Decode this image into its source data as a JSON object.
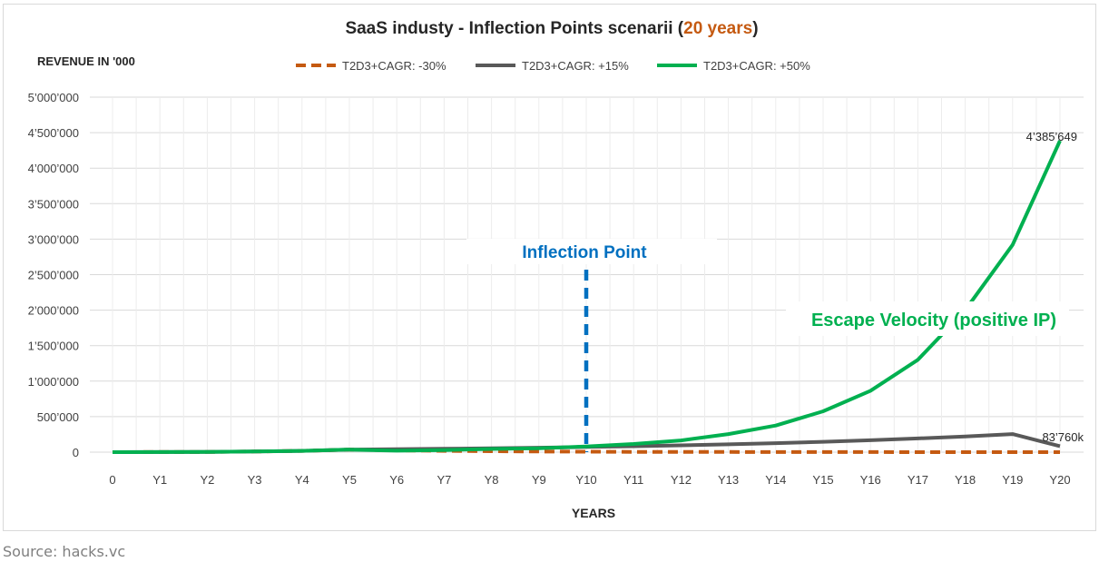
{
  "source_text": "Source: hacks.vc",
  "annotations": {
    "inflection_label": "Inflection Point",
    "escape_label": "Escape Velocity (positive IP)",
    "end_label_high": "4’385’649",
    "end_label_mid": "83’760k"
  },
  "colors": {
    "series_low": "#c55a11",
    "series_mid": "#595959",
    "series_high": "#00b050",
    "inflection": "#0070c0",
    "title_highlight": "#c55a11"
  },
  "chart_data": {
    "type": "line",
    "title": "SaaS industy - Inflection Points scenarii (",
    "title_highlight": "20 years",
    "title_end": ")",
    "ylabel": "REVENUE IN '000",
    "xlabel": "YEARS",
    "ylim": [
      0,
      5000000
    ],
    "yticks": [
      0,
      500000,
      1000000,
      1500000,
      2000000,
      2500000,
      3000000,
      3500000,
      4000000,
      4500000,
      5000000
    ],
    "ytick_labels": [
      "0",
      "500’000",
      "1’000’000",
      "1’500’000",
      "2’000’000",
      "2’500’000",
      "3’000’000",
      "3’500’000",
      "4’000’000",
      "4’500’000",
      "5’000’000"
    ],
    "categories": [
      "0",
      "Y1",
      "Y2",
      "Y3",
      "Y4",
      "Y5",
      "Y6",
      "Y7",
      "Y8",
      "Y9",
      "Y10",
      "Y11",
      "Y12",
      "Y13",
      "Y14",
      "Y15",
      "Y16",
      "Y17",
      "Y18",
      "Y19",
      "Y20"
    ],
    "series": [
      {
        "name": "T2D3+CAGR: -30%",
        "style": "dashed",
        "values": [
          0,
          1000,
          3000,
          9000,
          18000,
          36000,
          25200,
          17640,
          12348,
          8644,
          6050,
          4235,
          2965,
          2075,
          1453,
          1017,
          712,
          498,
          349,
          244,
          171
        ]
      },
      {
        "name": "T2D3+CAGR: +15%",
        "style": "solid",
        "values": [
          0,
          1000,
          3000,
          9000,
          18000,
          36000,
          41400,
          47610,
          54752,
          62964,
          72409,
          83270,
          95761,
          110125,
          126643,
          145640,
          167486,
          192609,
          221500,
          254725,
          83760
        ]
      },
      {
        "name": "T2D3+CAGR: +50%",
        "style": "solid",
        "values": [
          0,
          1000,
          3000,
          9000,
          18000,
          36000,
          20000,
          30000,
          45000,
          55000,
          80000,
          115000,
          165000,
          255000,
          375000,
          575000,
          865000,
          1300000,
          2000000,
          2920000,
          4385649
        ]
      }
    ],
    "inflection_category": "Y10",
    "legend_position": "top"
  }
}
